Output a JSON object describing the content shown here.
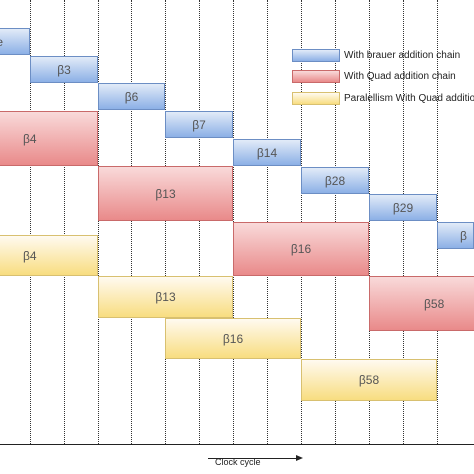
{
  "legend": [
    {
      "label": "With brauer addition chain",
      "color": "#8cb0e6"
    },
    {
      "label": "With Quad addition chain",
      "color": "#e98a8a"
    },
    {
      "label": "Paralellism With Quad additio",
      "color": "#f8dd80"
    }
  ],
  "blocks": {
    "blue": [
      "e",
      "β3",
      "β6",
      "β7",
      "β14",
      "β28",
      "β29",
      "β"
    ],
    "red": [
      "β4",
      "β13",
      "β16",
      "β58"
    ],
    "yellow": [
      "β4",
      "β13",
      "β16",
      "β58"
    ]
  },
  "x_axis": {
    "label": "Clock cycle"
  }
}
